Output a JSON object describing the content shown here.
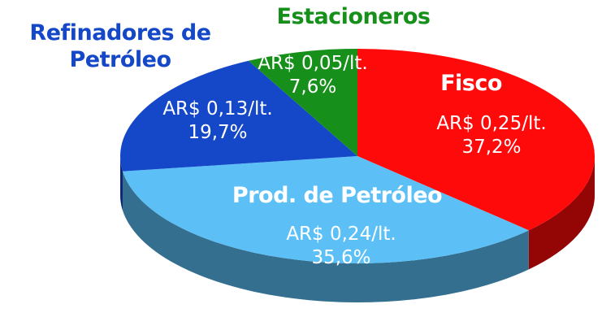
{
  "chart_data": {
    "type": "pie",
    "categories": [
      "Fisco",
      "Prod. de Petróleo",
      "Refinadores de Petróleo",
      "Estacioneros"
    ],
    "values": [
      37.2,
      35.6,
      19.7,
      7.6
    ],
    "value_labels": [
      "37,2%",
      "35,6%",
      "19,7%",
      "7,6%"
    ],
    "price_labels": [
      "AR$ 0,25/lt.",
      "AR$ 0,24/lt.",
      "AR$ 0,13/lt.",
      "AR$  0,05/lt."
    ],
    "colors": [
      "#ff0a0a",
      "#5cc0f7",
      "#1548c9",
      "#16901a"
    ]
  }
}
